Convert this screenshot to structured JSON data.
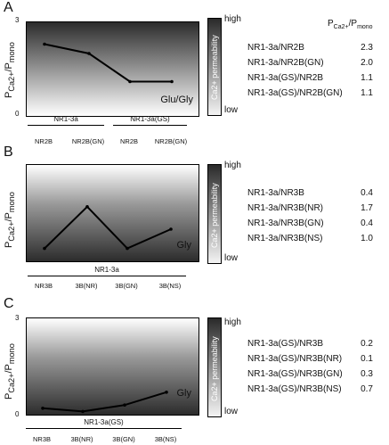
{
  "chart_data": [
    {
      "type": "line",
      "panel": "A",
      "condition": "Glu/Gly",
      "ytick_top": "3",
      "ytick_bottom": "0",
      "ylim": [
        0,
        3
      ],
      "categories": [
        "NR2B",
        "NR2B(GN)",
        "NR2B",
        "NR2B(GN)"
      ],
      "groups": [
        {
          "label": "NR1-3a",
          "span": [
            0,
            1
          ]
        },
        {
          "label": "NR1-3a(GS)",
          "span": [
            2,
            3
          ]
        }
      ],
      "values": [
        2.3,
        2.0,
        1.1,
        1.1
      ],
      "table_header": "PCa2+/Pmono",
      "table": [
        {
          "label": "NR1-3a/NR2B",
          "value": "2.3"
        },
        {
          "label": "NR1-3a/NR2B(GN)",
          "value": "2.0"
        },
        {
          "label": "NR1-3a(GS)/NR2B",
          "value": "1.1"
        },
        {
          "label": "NR1-3a(GS)/NR2B(GN)",
          "value": "1.1"
        }
      ]
    },
    {
      "type": "line",
      "panel": "B",
      "condition": "Gly",
      "ytick_top": "",
      "ytick_bottom": "",
      "ylim": [
        0,
        3
      ],
      "categories": [
        "NR3B",
        "3B(NR)",
        "3B(GN)",
        "3B(NS)"
      ],
      "groups": [
        {
          "label": "NR1-3a",
          "span": [
            0,
            3
          ]
        }
      ],
      "values": [
        0.4,
        1.7,
        0.4,
        1.0
      ],
      "table": [
        {
          "label": "NR1-3a/NR3B",
          "value": "0.4"
        },
        {
          "label": "NR1-3a/NR3B(NR)",
          "value": "1.7"
        },
        {
          "label": "NR1-3a/NR3B(GN)",
          "value": "0.4"
        },
        {
          "label": "NR1-3a/NR3B(NS)",
          "value": "1.0"
        }
      ]
    },
    {
      "type": "line",
      "panel": "C",
      "condition": "Gly",
      "ytick_top": "3",
      "ytick_bottom": "0",
      "ylim": [
        0,
        3
      ],
      "categories": [
        "NR3B",
        "3B(NR)",
        "3B(GN)",
        "3B(NS)"
      ],
      "groups": [
        {
          "label": "NR1-3a(GS)",
          "span": [
            0,
            3
          ]
        }
      ],
      "values": [
        0.2,
        0.1,
        0.3,
        0.7
      ],
      "table": [
        {
          "label": "NR1-3a(GS)/NR3B",
          "value": "0.2"
        },
        {
          "label": "NR1-3a(GS)/NR3B(NR)",
          "value": "0.1"
        },
        {
          "label": "NR1-3a(GS)/NR3B(GN)",
          "value": "0.3"
        },
        {
          "label": "NR1-3a(GS)/NR3B(NS)",
          "value": "0.7"
        }
      ]
    }
  ],
  "labels": {
    "ylabel": "PCa2+/Pmono",
    "permeability": "Ca2+ permeability",
    "high": "high",
    "low": "low"
  }
}
